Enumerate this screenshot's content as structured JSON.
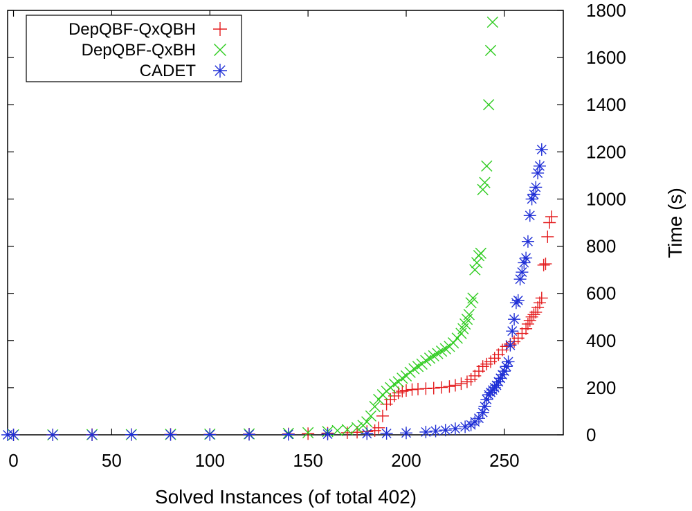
{
  "chart_data": {
    "type": "scatter",
    "xlabel": "Solved Instances (of total 402)",
    "ylabel": "Time (s)",
    "xlim": [
      -3,
      280
    ],
    "ylim": [
      0,
      1800
    ],
    "x_ticks": [
      0,
      50,
      100,
      150,
      200,
      250
    ],
    "y_ticks": [
      0,
      200,
      400,
      600,
      800,
      1000,
      1200,
      1400,
      1600,
      1800
    ],
    "y_axis_side": "right",
    "grid": false,
    "legend_position": "top-left",
    "series": [
      {
        "name": "DepQBF-QxQBH",
        "marker": "plus",
        "color": "#e41a1c",
        "points": [
          [
            0,
            0
          ],
          [
            20,
            0
          ],
          [
            40,
            1
          ],
          [
            60,
            1
          ],
          [
            80,
            2
          ],
          [
            100,
            2
          ],
          [
            120,
            3
          ],
          [
            140,
            4
          ],
          [
            150,
            5
          ],
          [
            160,
            7
          ],
          [
            170,
            9
          ],
          [
            175,
            11
          ],
          [
            180,
            14
          ],
          [
            184,
            18
          ],
          [
            186,
            30
          ],
          [
            188,
            80
          ],
          [
            190,
            130
          ],
          [
            192,
            150
          ],
          [
            194,
            165
          ],
          [
            196,
            178
          ],
          [
            198,
            185
          ],
          [
            200,
            188
          ],
          [
            203,
            192
          ],
          [
            206,
            194
          ],
          [
            210,
            196
          ],
          [
            214,
            198
          ],
          [
            218,
            201
          ],
          [
            222,
            205
          ],
          [
            225,
            210
          ],
          [
            228,
            217
          ],
          [
            231,
            225
          ],
          [
            233,
            235
          ],
          [
            235,
            250
          ],
          [
            237,
            270
          ],
          [
            239,
            290
          ],
          [
            241,
            300
          ],
          [
            243,
            310
          ],
          [
            245,
            325
          ],
          [
            247,
            340
          ],
          [
            249,
            360
          ],
          [
            251,
            375
          ],
          [
            253,
            385
          ],
          [
            255,
            395
          ],
          [
            257,
            410
          ],
          [
            259,
            430
          ],
          [
            261,
            450
          ],
          [
            262,
            470
          ],
          [
            263,
            485
          ],
          [
            264,
            500
          ],
          [
            265,
            510
          ],
          [
            266,
            520
          ],
          [
            267,
            540
          ],
          [
            268,
            560
          ],
          [
            269,
            580
          ],
          [
            270,
            720
          ],
          [
            271,
            725
          ],
          [
            272,
            840
          ],
          [
            273,
            900
          ],
          [
            274,
            925
          ]
        ]
      },
      {
        "name": "DepQBF-QxBH",
        "marker": "x",
        "color": "#2ecc1f",
        "points": [
          [
            0,
            0
          ],
          [
            20,
            0
          ],
          [
            40,
            1
          ],
          [
            60,
            1
          ],
          [
            80,
            2
          ],
          [
            100,
            3
          ],
          [
            120,
            4
          ],
          [
            140,
            6
          ],
          [
            150,
            9
          ],
          [
            160,
            14
          ],
          [
            165,
            18
          ],
          [
            170,
            22
          ],
          [
            175,
            30
          ],
          [
            178,
            40
          ],
          [
            180,
            55
          ],
          [
            182,
            80
          ],
          [
            184,
            120
          ],
          [
            186,
            150
          ],
          [
            188,
            170
          ],
          [
            190,
            185
          ],
          [
            192,
            200
          ],
          [
            194,
            215
          ],
          [
            196,
            225
          ],
          [
            198,
            240
          ],
          [
            200,
            250
          ],
          [
            202,
            265
          ],
          [
            204,
            280
          ],
          [
            206,
            290
          ],
          [
            208,
            300
          ],
          [
            210,
            315
          ],
          [
            212,
            325
          ],
          [
            214,
            335
          ],
          [
            216,
            345
          ],
          [
            218,
            355
          ],
          [
            220,
            365
          ],
          [
            222,
            375
          ],
          [
            224,
            390
          ],
          [
            226,
            410
          ],
          [
            228,
            430
          ],
          [
            229,
            450
          ],
          [
            230,
            470
          ],
          [
            231,
            490
          ],
          [
            232,
            510
          ],
          [
            233,
            560
          ],
          [
            234,
            580
          ],
          [
            235,
            700
          ],
          [
            236,
            730
          ],
          [
            237,
            760
          ],
          [
            238,
            770
          ],
          [
            239,
            1040
          ],
          [
            240,
            1070
          ],
          [
            241,
            1140
          ],
          [
            242,
            1400
          ],
          [
            243,
            1630
          ],
          [
            244,
            1750
          ]
        ]
      },
      {
        "name": "CADET",
        "marker": "star",
        "color": "#1f2fd6",
        "points": [
          [
            -3,
            0
          ],
          [
            0,
            0
          ],
          [
            20,
            0
          ],
          [
            40,
            0
          ],
          [
            60,
            1
          ],
          [
            80,
            1
          ],
          [
            100,
            1
          ],
          [
            120,
            2
          ],
          [
            140,
            2
          ],
          [
            160,
            3
          ],
          [
            180,
            5
          ],
          [
            190,
            6
          ],
          [
            200,
            8
          ],
          [
            210,
            12
          ],
          [
            215,
            16
          ],
          [
            220,
            20
          ],
          [
            225,
            26
          ],
          [
            230,
            34
          ],
          [
            233,
            42
          ],
          [
            235,
            55
          ],
          [
            237,
            70
          ],
          [
            239,
            95
          ],
          [
            240,
            120
          ],
          [
            241,
            150
          ],
          [
            242,
            170
          ],
          [
            243,
            180
          ],
          [
            244,
            190
          ],
          [
            245,
            200
          ],
          [
            246,
            210
          ],
          [
            247,
            225
          ],
          [
            248,
            240
          ],
          [
            249,
            255
          ],
          [
            250,
            270
          ],
          [
            251,
            290
          ],
          [
            252,
            310
          ],
          [
            253,
            380
          ],
          [
            254,
            440
          ],
          [
            255,
            490
          ],
          [
            256,
            560
          ],
          [
            257,
            570
          ],
          [
            258,
            660
          ],
          [
            259,
            690
          ],
          [
            260,
            730
          ],
          [
            261,
            750
          ],
          [
            262,
            820
          ],
          [
            263,
            930
          ],
          [
            264,
            1000
          ],
          [
            265,
            1020
          ],
          [
            266,
            1050
          ],
          [
            267,
            1110
          ],
          [
            268,
            1140
          ],
          [
            269,
            1210
          ]
        ]
      }
    ]
  }
}
